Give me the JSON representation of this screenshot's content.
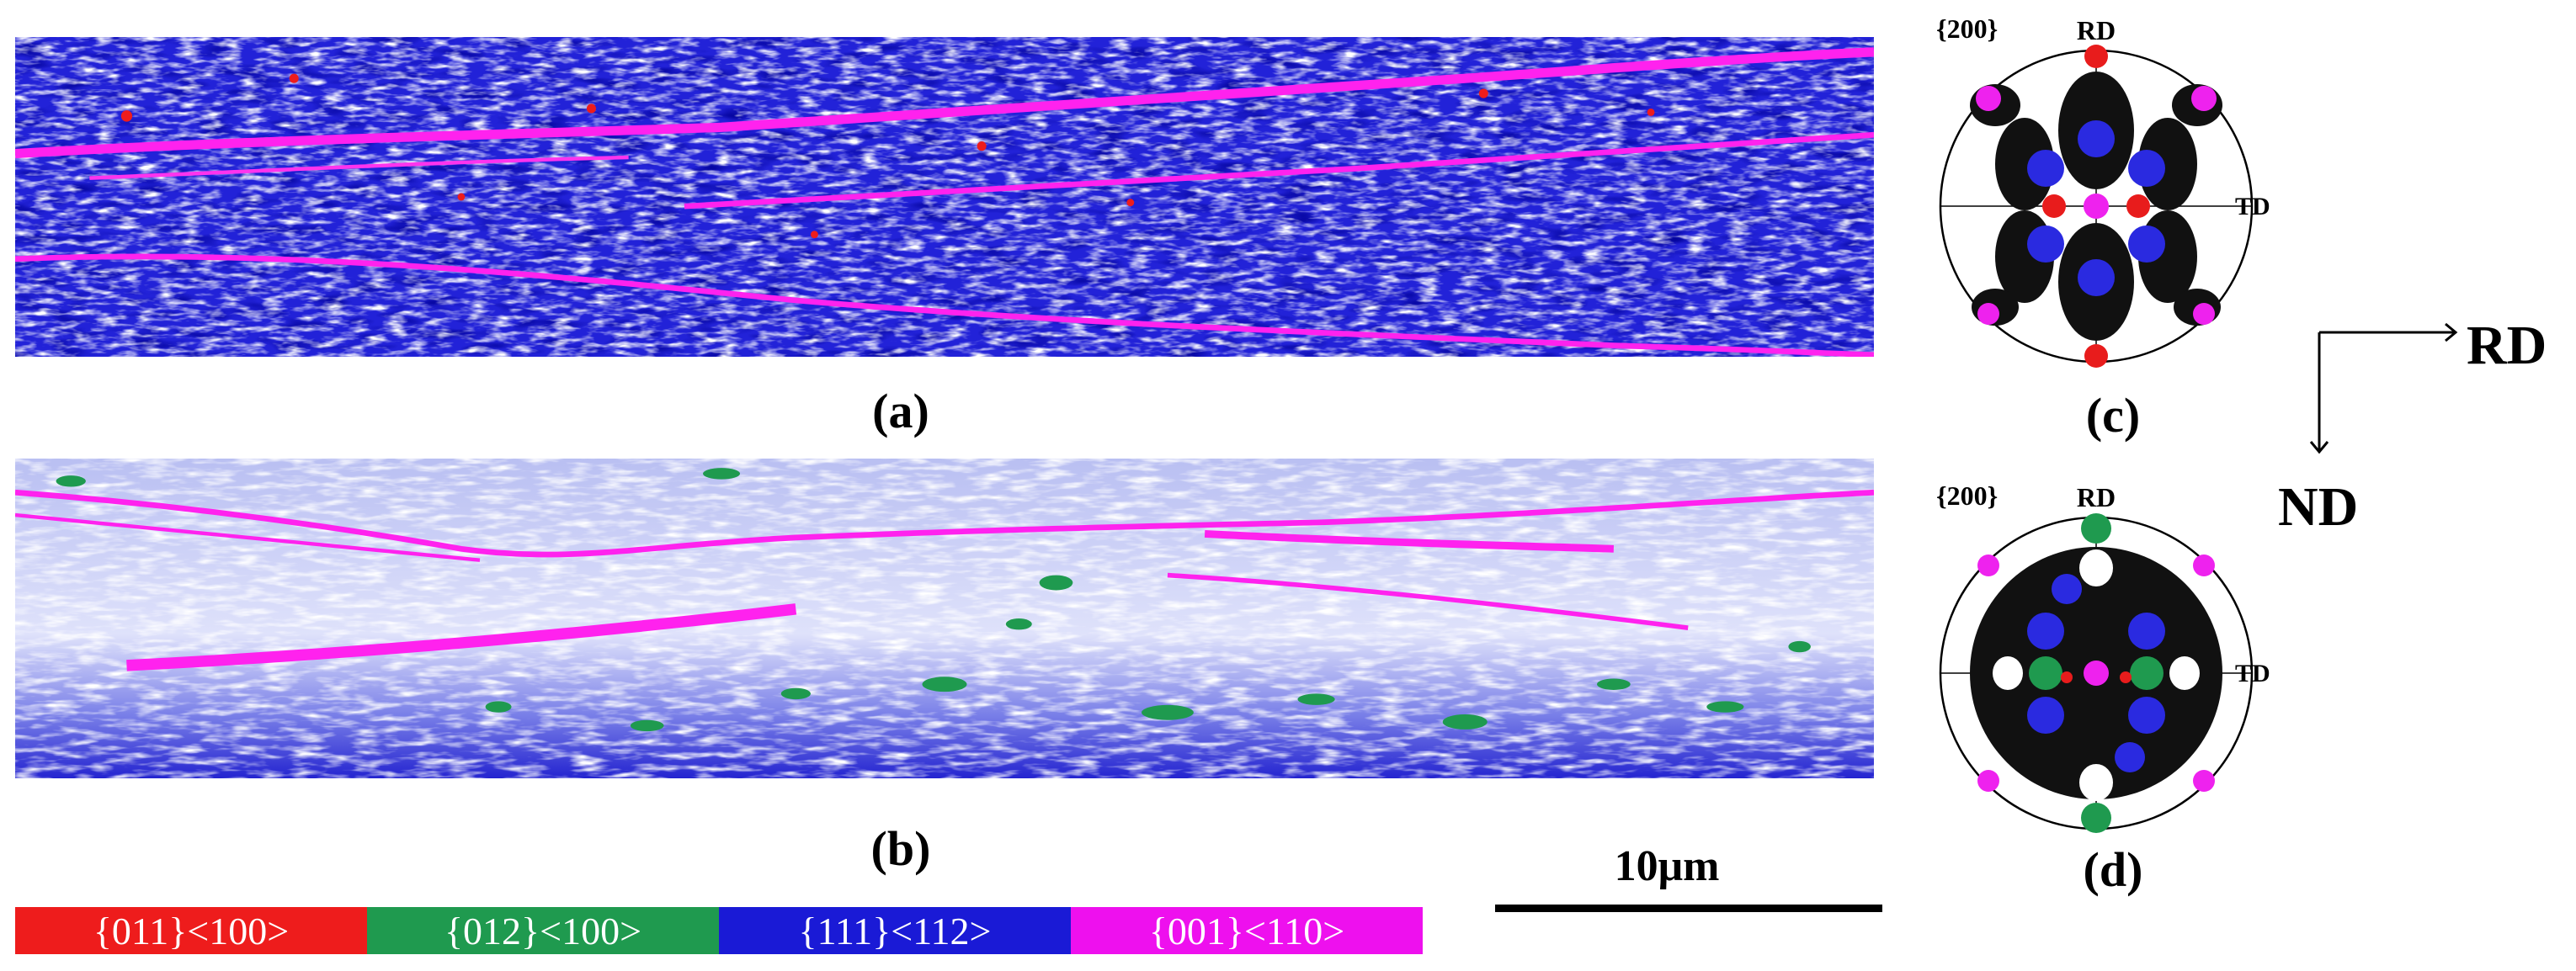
{
  "panels": {
    "a": {
      "caption": "(a)"
    },
    "b": {
      "caption": "(b)"
    },
    "c": {
      "caption": "(c)",
      "projection": "{200}",
      "top_label": "RD",
      "right_label": "TD"
    },
    "d": {
      "caption": "(d)",
      "projection": "{200}",
      "top_label": "RD",
      "right_label": "TD"
    }
  },
  "legend": [
    {
      "label": "{011}<100>",
      "color": "#ee1c1c"
    },
    {
      "label": "{012}<100>",
      "color": "#1f9a4f"
    },
    {
      "label": "{111}<112>",
      "color": "#1a1ad6"
    },
    {
      "label": "{001}<110>",
      "color": "#ee10ee"
    }
  ],
  "scale_bar": {
    "label": "10μm"
  },
  "axes": {
    "horizontal": "RD",
    "vertical": "ND"
  }
}
